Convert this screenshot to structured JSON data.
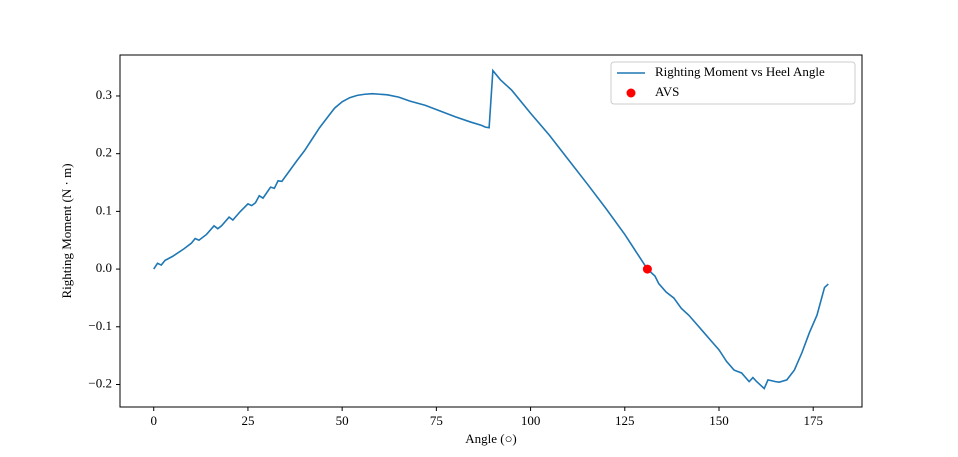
{
  "chart_data": {
    "type": "line",
    "x_label": "Angle (○)",
    "y_label": "Righting Moment (N · m)",
    "xlim": [
      -8.95,
      187.95
    ],
    "ylim": [
      -0.239,
      0.371
    ],
    "xticks": [
      0,
      25,
      50,
      75,
      100,
      125,
      150,
      175
    ],
    "yticks": [
      {
        "value": -0.2,
        "label": "−0.2"
      },
      {
        "value": -0.1,
        "label": "−0.1"
      },
      {
        "value": 0,
        "label": "0.0"
      },
      0.1,
      0.2,
      0.3
    ],
    "legend": "upper right",
    "series": [
      {
        "name": "Righting Moment vs Heel Angle",
        "type": "line",
        "color": "#1f77b4",
        "x": [
          0,
          1,
          2,
          3,
          5,
          8,
          10,
          11,
          12,
          14,
          16,
          17,
          18,
          20,
          21,
          23,
          25,
          26,
          27,
          28,
          29,
          31,
          32,
          33,
          34,
          36,
          38,
          40,
          42,
          44,
          46,
          48,
          50,
          52,
          54,
          56,
          58,
          60,
          62,
          65,
          68,
          72,
          76,
          80,
          84,
          87,
          88,
          89,
          90,
          92,
          95,
          100,
          105,
          110,
          115,
          120,
          125,
          128,
          131,
          133,
          134,
          136,
          138,
          140,
          142,
          144,
          146,
          148,
          150,
          152,
          154,
          156,
          158,
          159,
          160,
          162,
          163,
          165,
          166,
          168,
          170,
          172,
          174,
          176,
          178,
          179
        ],
        "values": [
          0,
          0.01,
          0.007,
          0.015,
          0.022,
          0.035,
          0.045,
          0.053,
          0.05,
          0.06,
          0.075,
          0.07,
          0.075,
          0.09,
          0.085,
          0.1,
          0.113,
          0.11,
          0.115,
          0.127,
          0.123,
          0.142,
          0.14,
          0.153,
          0.152,
          0.17,
          0.188,
          0.205,
          0.225,
          0.245,
          0.262,
          0.279,
          0.29,
          0.297,
          0.301,
          0.303,
          0.304,
          0.303,
          0.302,
          0.298,
          0.291,
          0.284,
          0.274,
          0.264,
          0.255,
          0.249,
          0.246,
          0.245,
          0.344,
          0.328,
          0.31,
          0.27,
          0.232,
          0.19,
          0.148,
          0.105,
          0.06,
          0.03,
          0,
          -0.012,
          -0.025,
          -0.04,
          -0.05,
          -0.068,
          -0.08,
          -0.095,
          -0.11,
          -0.125,
          -0.14,
          -0.16,
          -0.175,
          -0.18,
          -0.195,
          -0.188,
          -0.195,
          -0.207,
          -0.192,
          -0.195,
          -0.196,
          -0.192,
          -0.175,
          -0.145,
          -0.11,
          -0.08,
          -0.032,
          -0.026
        ]
      },
      {
        "name": "AVS",
        "type": "scatter",
        "color": "#ff0000",
        "x": [
          131
        ],
        "values": [
          0
        ]
      }
    ]
  }
}
